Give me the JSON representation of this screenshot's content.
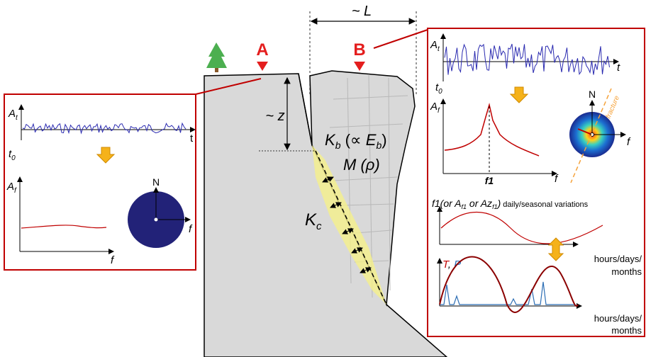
{
  "markers": {
    "a": "A",
    "b": "B"
  },
  "dimensions": {
    "length": "~ L",
    "depth": "~ z"
  },
  "block_labels": {
    "stiffness": [
      "K",
      "b",
      " (∝ ",
      "E",
      "b",
      ")"
    ],
    "mass": "M (ρ)",
    "contact": [
      "K",
      "c"
    ]
  },
  "left_panel": {
    "time_axis_y": [
      "A",
      "t"
    ],
    "time_axis_x": "t",
    "start_time": [
      "t",
      "0"
    ],
    "freq_axis_y": [
      "A",
      "f"
    ],
    "freq_axis_x": "f",
    "polar_north": "N",
    "polar_radius": "f"
  },
  "right_panel": {
    "time_axis_y": [
      "A",
      "t"
    ],
    "time_axis_x": "t",
    "start_time": [
      "t",
      "0"
    ],
    "freq_axis_y": [
      "A",
      "f"
    ],
    "freq_axis_x": "f",
    "peak_label": "f1",
    "polar_north": "N",
    "polar_radius": "f",
    "fracture_label": "fracture",
    "variation_caption": [
      "f1(or A",
      "f1",
      " or Az",
      "f1",
      ")",
      " daily/seasonal variations"
    ],
    "variation_axis_x": [
      "hours/days/",
      "months"
    ],
    "climate_labels": [
      "T",
      ", ",
      "P"
    ],
    "climate_axis_x": [
      "hours/days/",
      "months"
    ]
  }
}
